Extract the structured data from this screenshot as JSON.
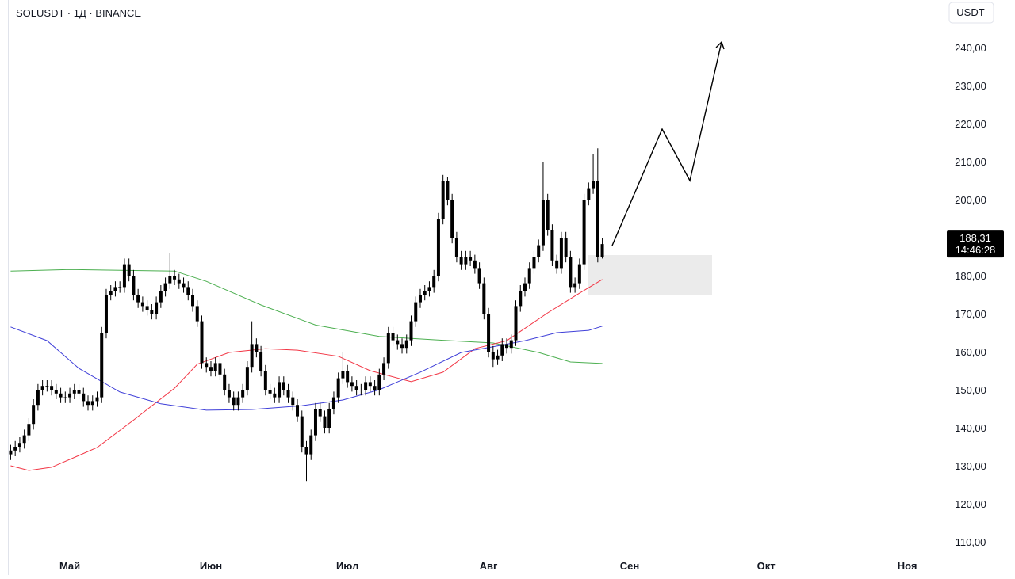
{
  "chart_data": {
    "type": "candlestick",
    "title": "SOLUSDT · 1Д · BINANCE",
    "currency": "USDT",
    "xlim": [
      -13.6,
      192
    ],
    "ylim": [
      101.25,
      252.5
    ],
    "xticks": [
      {
        "value": 0,
        "label": "Май"
      },
      {
        "value": 31,
        "label": "Июн"
      },
      {
        "value": 61,
        "label": "Июл"
      },
      {
        "value": 92,
        "label": "Авг"
      },
      {
        "value": 123,
        "label": "Сен"
      },
      {
        "value": 153,
        "label": "Окт"
      },
      {
        "value": 184,
        "label": "Ноя"
      }
    ],
    "yticks": [
      {
        "value": 110,
        "label": "110,00"
      },
      {
        "value": 120,
        "label": "120,00"
      },
      {
        "value": 130,
        "label": "130,00"
      },
      {
        "value": 140,
        "label": "140,00"
      },
      {
        "value": 150,
        "label": "150,00"
      },
      {
        "value": 160,
        "label": "160,00"
      },
      {
        "value": 170,
        "label": "170,00"
      },
      {
        "value": 180,
        "label": "180,00"
      },
      {
        "value": 190,
        "label": "190,00"
      },
      {
        "value": 200,
        "label": "200,00"
      },
      {
        "value": 210,
        "label": "210,00"
      },
      {
        "value": 220,
        "label": "220,00"
      },
      {
        "value": 230,
        "label": "230,00"
      },
      {
        "value": 240,
        "label": "240,00"
      }
    ],
    "last_price": {
      "value": 188.31,
      "label": "188,31"
    },
    "countdown": "14:46:28",
    "candle_color": "#000000",
    "candles": [
      [
        -13,
        133,
        135.5,
        131.5,
        134
      ],
      [
        -12,
        134,
        136.5,
        132.5,
        135
      ],
      [
        -11,
        135,
        137.5,
        133.5,
        136
      ],
      [
        -10,
        136,
        139.5,
        134.5,
        138
      ],
      [
        -9,
        138,
        142.5,
        136.5,
        141
      ],
      [
        -8,
        141,
        147.5,
        139.5,
        146
      ],
      [
        -7,
        146,
        151.5,
        144.5,
        150
      ],
      [
        -6,
        150,
        152.5,
        148.5,
        151
      ],
      [
        -5,
        151,
        152.5,
        149.5,
        151
      ],
      [
        -4,
        151,
        152.5,
        148.5,
        150
      ],
      [
        -3,
        150,
        151.5,
        147.5,
        149
      ],
      [
        -2,
        149,
        150.5,
        146.5,
        148
      ],
      [
        -1,
        148,
        149.5,
        146.5,
        148
      ],
      [
        0,
        148,
        150.5,
        146.5,
        149
      ],
      [
        1,
        149,
        151.5,
        147.5,
        150
      ],
      [
        2,
        150,
        151.5,
        147.5,
        149
      ],
      [
        3,
        149,
        150.5,
        145.5,
        147
      ],
      [
        4,
        147,
        148.5,
        144.5,
        146
      ],
      [
        5,
        146,
        148.5,
        144.5,
        147
      ],
      [
        6,
        147,
        149.5,
        145.5,
        148
      ],
      [
        7,
        148,
        166.5,
        146.5,
        165
      ],
      [
        8,
        165,
        176.5,
        163.5,
        175
      ],
      [
        9,
        175,
        177.5,
        173.5,
        176
      ],
      [
        10,
        176,
        178.5,
        174.5,
        177
      ],
      [
        11,
        177,
        178.5,
        175.5,
        177
      ],
      [
        12,
        177,
        184.5,
        175.5,
        183
      ],
      [
        13,
        183,
        184.5,
        178.5,
        180
      ],
      [
        14,
        180,
        181.5,
        173.5,
        175
      ],
      [
        15,
        175,
        176.5,
        171.5,
        173
      ],
      [
        16,
        173,
        174.5,
        170.5,
        172
      ],
      [
        17,
        172,
        173.5,
        169.5,
        171
      ],
      [
        18,
        171,
        172.5,
        168.5,
        170
      ],
      [
        19,
        170,
        174.5,
        168.5,
        173
      ],
      [
        20,
        173,
        177.5,
        171.5,
        176
      ],
      [
        21,
        176,
        179.5,
        174.5,
        178
      ],
      [
        22,
        178,
        186,
        176.5,
        180
      ],
      [
        23,
        180,
        181.5,
        177.5,
        179
      ],
      [
        24,
        179,
        180.5,
        176.5,
        178
      ],
      [
        25,
        178,
        179.5,
        175.5,
        177
      ],
      [
        26,
        177,
        178.5,
        173.5,
        175
      ],
      [
        27,
        175,
        176.5,
        170.5,
        172
      ],
      [
        28,
        172,
        173.5,
        166.5,
        168
      ],
      [
        29,
        168,
        169.5,
        155.5,
        157
      ],
      [
        30,
        157,
        158.5,
        154.5,
        156
      ],
      [
        31,
        156,
        157.5,
        153.5,
        155
      ],
      [
        32,
        155,
        158.5,
        153.5,
        157
      ],
      [
        33,
        157,
        158.5,
        152.5,
        154
      ],
      [
        34,
        154,
        155.5,
        148.5,
        150
      ],
      [
        35,
        150,
        151.5,
        146.5,
        148
      ],
      [
        36,
        148,
        149.5,
        144.5,
        146
      ],
      [
        37,
        146,
        149.5,
        144.5,
        148
      ],
      [
        38,
        148,
        151.5,
        146.5,
        150
      ],
      [
        39,
        150,
        157.5,
        148.5,
        156
      ],
      [
        40,
        156,
        168,
        154.5,
        162
      ],
      [
        41,
        162,
        163.5,
        158.5,
        160
      ],
      [
        42,
        160,
        161.5,
        153.5,
        155
      ],
      [
        43,
        155,
        156.5,
        148.5,
        150
      ],
      [
        44,
        150,
        151.5,
        147.5,
        149
      ],
      [
        45,
        149,
        150.5,
        146.5,
        148
      ],
      [
        46,
        148,
        153.5,
        146.5,
        152
      ],
      [
        47,
        152,
        153.5,
        148.5,
        150
      ],
      [
        48,
        150,
        151.5,
        146.5,
        148
      ],
      [
        49,
        148,
        149.5,
        144.5,
        146
      ],
      [
        50,
        146,
        147.5,
        141.5,
        143
      ],
      [
        51,
        143,
        144.5,
        133.5,
        135
      ],
      [
        52,
        135,
        136.5,
        126,
        133
      ],
      [
        53,
        133,
        139.5,
        131.5,
        138
      ],
      [
        54,
        138,
        146.5,
        136.5,
        145
      ],
      [
        55,
        145,
        146.5,
        141.5,
        143
      ],
      [
        56,
        143,
        144.5,
        138.5,
        140
      ],
      [
        57,
        140,
        146.5,
        138.5,
        145
      ],
      [
        58,
        145,
        149.5,
        143.5,
        148
      ],
      [
        59,
        148,
        154.5,
        146.5,
        153
      ],
      [
        60,
        153,
        160,
        151.5,
        155
      ],
      [
        61,
        155,
        156.5,
        150.5,
        152
      ],
      [
        62,
        152,
        153.5,
        149.5,
        151
      ],
      [
        63,
        151,
        152.5,
        148.5,
        150
      ],
      [
        64,
        150,
        151.5,
        148.5,
        150
      ],
      [
        65,
        150,
        153.5,
        148.5,
        152
      ],
      [
        66,
        152,
        153.5,
        149.5,
        151
      ],
      [
        67,
        151,
        152.5,
        148.5,
        150
      ],
      [
        68,
        150,
        155.5,
        148.5,
        154
      ],
      [
        69,
        154,
        158.5,
        152.5,
        157
      ],
      [
        70,
        157,
        166.5,
        155.5,
        165
      ],
      [
        71,
        165,
        166.5,
        161.5,
        163
      ],
      [
        72,
        163,
        164.5,
        160.5,
        162
      ],
      [
        73,
        162,
        163.5,
        159.5,
        161
      ],
      [
        74,
        161,
        164.5,
        159.5,
        163
      ],
      [
        75,
        163,
        169.5,
        161.5,
        168
      ],
      [
        76,
        168,
        174.5,
        166.5,
        173
      ],
      [
        77,
        173,
        176.5,
        171.5,
        175
      ],
      [
        78,
        175,
        177.5,
        173.5,
        176
      ],
      [
        79,
        176,
        178.5,
        174.5,
        177
      ],
      [
        80,
        177,
        181.5,
        175.5,
        180
      ],
      [
        81,
        180,
        196.5,
        178.5,
        195
      ],
      [
        82,
        195,
        206.5,
        193.5,
        205
      ],
      [
        83,
        205,
        206,
        198.5,
        200
      ],
      [
        84,
        200,
        201.5,
        188.5,
        190
      ],
      [
        85,
        190,
        191.5,
        183.5,
        185
      ],
      [
        86,
        185,
        186.5,
        181.5,
        183
      ],
      [
        87,
        183,
        186.5,
        181.5,
        185
      ],
      [
        88,
        185,
        186.5,
        182.5,
        184
      ],
      [
        89,
        184,
        185.5,
        180.5,
        182
      ],
      [
        90,
        182,
        183.5,
        176.5,
        178
      ],
      [
        91,
        178,
        179.5,
        168.5,
        170
      ],
      [
        92,
        170,
        171.5,
        158.5,
        160
      ],
      [
        93,
        160,
        161.5,
        156,
        158
      ],
      [
        94,
        158,
        160.5,
        156.5,
        159
      ],
      [
        95,
        159,
        163.5,
        157.5,
        162
      ],
      [
        96,
        162,
        163.5,
        159.5,
        161
      ],
      [
        97,
        161,
        164.5,
        159.5,
        163
      ],
      [
        98,
        163,
        173.5,
        161.5,
        172
      ],
      [
        99,
        172,
        177.5,
        170.5,
        176
      ],
      [
        100,
        176,
        179.5,
        174.5,
        178
      ],
      [
        101,
        178,
        183.5,
        176.5,
        182
      ],
      [
        102,
        182,
        186.5,
        180.5,
        185
      ],
      [
        103,
        185,
        189.5,
        183.5,
        188
      ],
      [
        104,
        188,
        210,
        186.5,
        200
      ],
      [
        105,
        200,
        201.5,
        190.5,
        192
      ],
      [
        106,
        192,
        193.5,
        182.5,
        184
      ],
      [
        107,
        184,
        185.5,
        180.5,
        182
      ],
      [
        108,
        182,
        191.5,
        180.5,
        190
      ],
      [
        109,
        190,
        191.5,
        183.5,
        185
      ],
      [
        110,
        185,
        186.5,
        175.5,
        177
      ],
      [
        111,
        177,
        179.5,
        175.5,
        178
      ],
      [
        112,
        178,
        184.5,
        176.5,
        183
      ],
      [
        113,
        183,
        201.5,
        181.5,
        200
      ],
      [
        114,
        200,
        204.5,
        198.5,
        203
      ],
      [
        115,
        203,
        212,
        201.5,
        205
      ],
      [
        116,
        205,
        213.5,
        183.5,
        185
      ],
      [
        117,
        185,
        190,
        184.5,
        188.31
      ]
    ],
    "series": [
      {
        "color": "#4caf50",
        "x": [
          -13,
          0,
          23,
          30,
          42,
          54,
          68,
          82,
          93,
          103,
          110,
          117
        ],
        "values": [
          181.2,
          181.6,
          181.2,
          178.5,
          172.3,
          167,
          164,
          163,
          162.3,
          159.8,
          157.3,
          156.9
        ]
      },
      {
        "color": "#f23645",
        "x": [
          -13,
          -9,
          -4,
          2,
          6,
          14,
          23,
          28,
          35,
          43,
          50,
          59,
          66,
          75,
          82,
          89,
          96,
          105,
          112,
          117
        ],
        "values": [
          130,
          128.75,
          129.6,
          132.7,
          134.8,
          142,
          150.4,
          156.7,
          159.8,
          160.8,
          160.4,
          158.8,
          155,
          152.1,
          154.6,
          160.8,
          162.9,
          170.2,
          175.4,
          179
        ]
      },
      {
        "color": "#3f3fd8",
        "x": [
          -13,
          -5,
          2,
          11,
          20,
          30,
          40,
          51,
          60,
          68,
          77,
          86,
          93,
          100,
          107,
          114,
          117
        ],
        "values": [
          166.5,
          162.9,
          155.6,
          149.4,
          146.3,
          144.6,
          144.8,
          145.8,
          147.3,
          150,
          154.6,
          159.8,
          161.3,
          162.9,
          165,
          165.6,
          166.7
        ]
      }
    ]
  }
}
